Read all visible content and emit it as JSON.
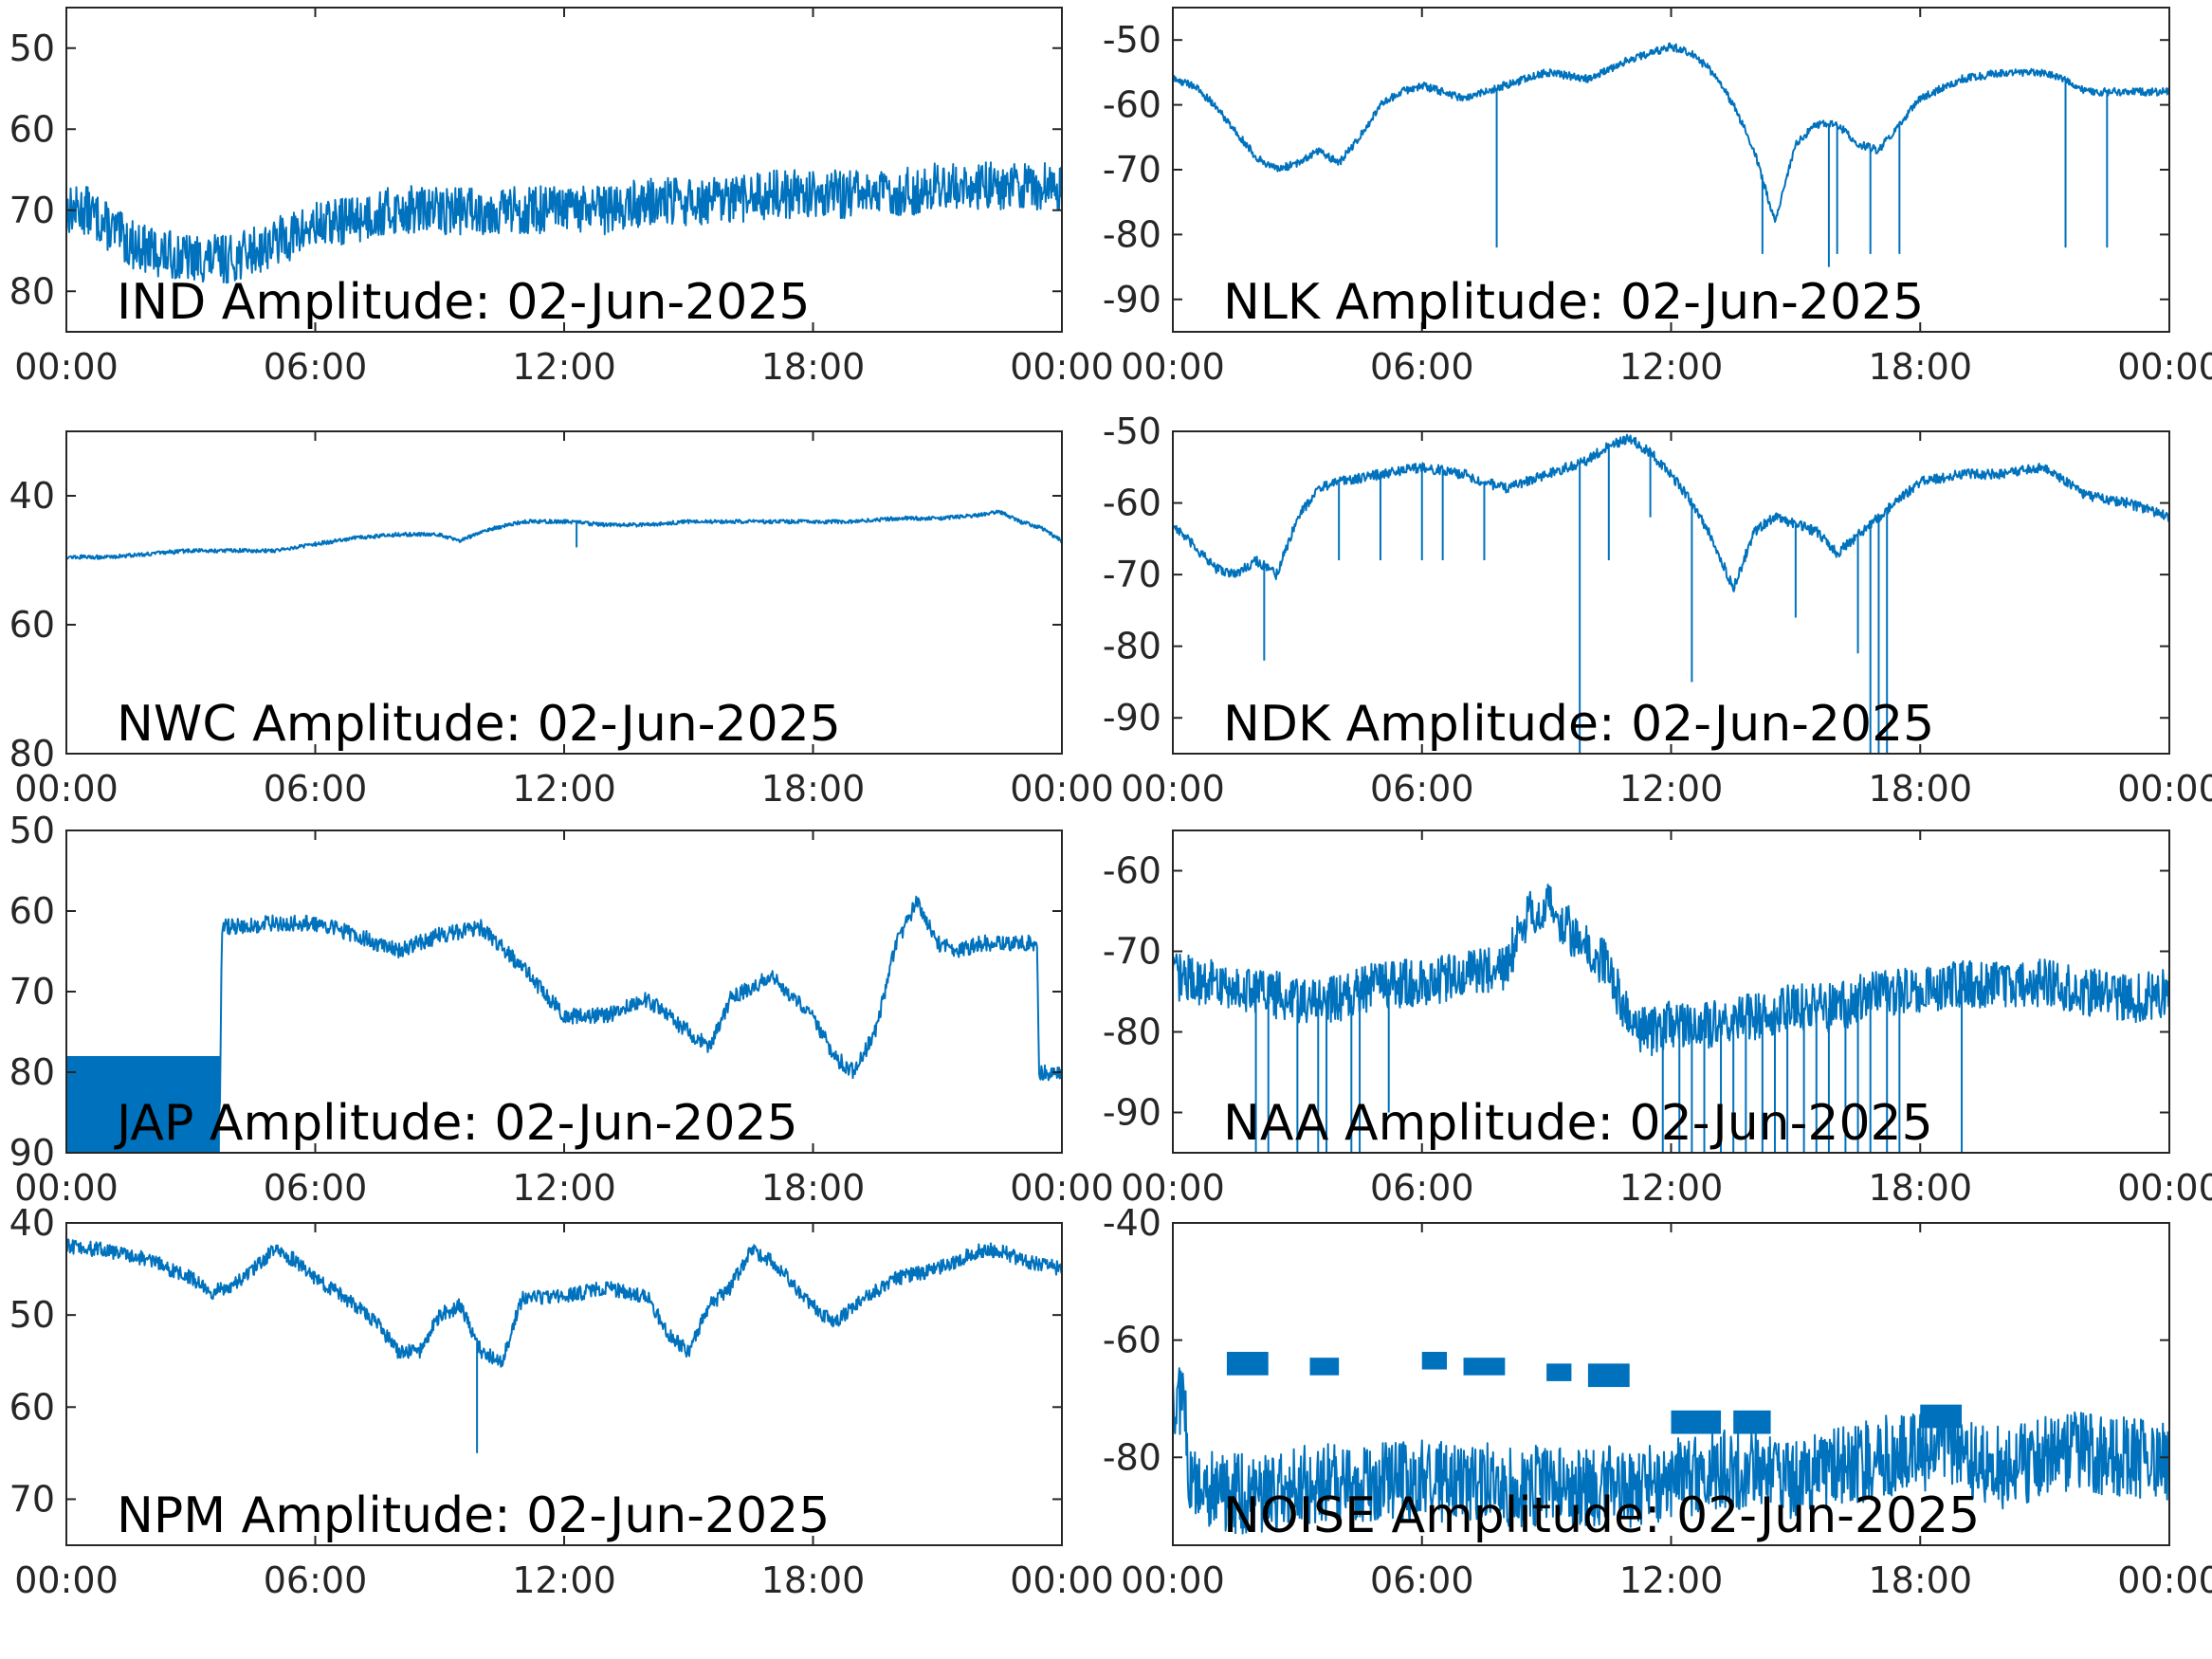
{
  "chart_data": [
    {
      "type": "line",
      "title": "IND Amplitude: 02-Jun-2025",
      "x_ticks": [
        "00:00",
        "06:00",
        "12:00",
        "18:00",
        "00:00"
      ],
      "x_range_hours": [
        0,
        24
      ],
      "y_ticks": [
        "50",
        "60",
        "70",
        "80"
      ],
      "y_tick_values": [
        -50,
        -60,
        -70,
        -80
      ],
      "ylim": [
        -85,
        -45
      ],
      "noise": 3,
      "series": [
        {
          "x": [
            0,
            0.5,
            1,
            1.5,
            2,
            3,
            4,
            5,
            6,
            7,
            8,
            9,
            10,
            11,
            12,
            13,
            14,
            15,
            16,
            17,
            18,
            19,
            20,
            21,
            22,
            23,
            24
          ],
          "y": [
            -70,
            -70,
            -72,
            -74,
            -75,
            -76,
            -76,
            -74,
            -72,
            -71,
            -70,
            -70,
            -70,
            -70,
            -70,
            -70,
            -69,
            -69,
            -69,
            -68,
            -68,
            -68,
            -68,
            -67,
            -67,
            -67,
            -67
          ]
        }
      ]
    },
    {
      "type": "line",
      "title": "NLK Amplitude: 02-Jun-2025",
      "x_ticks": [
        "00:00",
        "06:00",
        "12:00",
        "18:00",
        "00:00"
      ],
      "x_range_hours": [
        0,
        24
      ],
      "y_ticks": [
        "-50",
        "-60",
        "-70",
        "-80",
        "-90"
      ],
      "y_tick_values": [
        -50,
        -60,
        -70,
        -80,
        -90
      ],
      "ylim": [
        -95,
        -45
      ],
      "noise": 0.6,
      "series": [
        {
          "x": [
            0,
            0.5,
            1,
            1.5,
            2,
            2.5,
            3,
            3.5,
            4,
            4.5,
            5,
            5.5,
            6,
            7,
            8,
            9,
            10,
            11,
            11.5,
            12,
            12.5,
            13,
            13.5,
            14,
            14.5,
            15,
            15.5,
            16,
            16.5,
            17,
            18,
            19,
            20,
            21,
            21.5,
            22,
            23,
            24
          ],
          "y": [
            -56,
            -57,
            -60,
            -64,
            -68,
            -70,
            -69,
            -67,
            -69,
            -65,
            -60,
            -58,
            -57,
            -59,
            -57,
            -55,
            -56,
            -53,
            -52,
            -51,
            -52,
            -55,
            -60,
            -67,
            -78,
            -66,
            -63,
            -63,
            -66,
            -67,
            -59,
            -56,
            -55,
            -55,
            -56,
            -58,
            -58,
            -58
          ]
        }
      ],
      "spikes": [
        [
          7.8,
          -82
        ],
        [
          14.2,
          -83
        ],
        [
          15.8,
          -85
        ],
        [
          16,
          -83
        ],
        [
          16.8,
          -83
        ],
        [
          17.5,
          -83
        ],
        [
          21.5,
          -82
        ],
        [
          22.5,
          -82
        ]
      ]
    },
    {
      "type": "line",
      "title": "NWC Amplitude: 02-Jun-2025",
      "x_ticks": [
        "00:00",
        "06:00",
        "12:00",
        "18:00",
        "00:00"
      ],
      "x_range_hours": [
        0,
        24
      ],
      "y_ticks": [
        "40",
        "60",
        "80"
      ],
      "y_tick_values": [
        -40,
        -60,
        -80
      ],
      "ylim": [
        -80,
        -30
      ],
      "noise": 0.3,
      "series": [
        {
          "x": [
            0,
            1,
            2,
            3,
            4,
            5,
            6,
            7,
            8,
            9,
            9.5,
            10,
            11,
            12,
            13,
            14,
            15,
            16,
            17,
            18,
            19,
            20,
            21,
            22,
            22.5,
            23,
            23.5,
            24
          ],
          "y": [
            -49.5,
            -49.5,
            -49,
            -48.5,
            -48.5,
            -48.5,
            -47.5,
            -46.5,
            -46,
            -46,
            -47,
            -45.5,
            -44,
            -44,
            -44.5,
            -44.5,
            -44,
            -44,
            -44,
            -44,
            -44,
            -43.5,
            -43.5,
            -43,
            -42.5,
            -44,
            -45,
            -47
          ]
        }
      ],
      "spikes": [
        [
          12.3,
          -48
        ]
      ]
    },
    {
      "type": "line",
      "title": "NDK Amplitude: 02-Jun-2025",
      "x_ticks": [
        "00:00",
        "06:00",
        "12:00",
        "18:00",
        "00:00"
      ],
      "x_range_hours": [
        0,
        24
      ],
      "y_ticks": [
        "-50",
        "-60",
        "-70",
        "-80",
        "-90"
      ],
      "y_tick_values": [
        -50,
        -60,
        -70,
        -80,
        -90
      ],
      "ylim": [
        -95,
        -50
      ],
      "noise": 0.7,
      "series": [
        {
          "x": [
            0,
            0.5,
            1,
            1.5,
            2,
            2.5,
            3,
            3.5,
            4,
            5,
            6,
            7,
            7.5,
            8,
            9,
            10,
            10.5,
            11,
            11.5,
            12,
            12.5,
            13,
            13.5,
            14,
            14.5,
            15,
            15.5,
            16,
            17,
            18,
            19,
            20,
            21,
            21.5,
            22,
            23,
            24
          ],
          "y": [
            -63,
            -66,
            -69,
            -70,
            -68,
            -70,
            -62,
            -58,
            -57,
            -56,
            -55,
            -56,
            -57,
            -58,
            -56,
            -54,
            -52,
            -51,
            -53,
            -56,
            -60,
            -65,
            -72,
            -64,
            -62,
            -63,
            -64,
            -67,
            -62,
            -57,
            -56,
            -56,
            -55,
            -57,
            -59,
            -60,
            -62
          ]
        }
      ],
      "spikes": [
        [
          2.2,
          -82
        ],
        [
          4,
          -68
        ],
        [
          5,
          -68
        ],
        [
          6,
          -68
        ],
        [
          6.5,
          -68
        ],
        [
          7.5,
          -68
        ],
        [
          9.8,
          -95
        ],
        [
          10.5,
          -68
        ],
        [
          11.5,
          -62
        ],
        [
          12.5,
          -85
        ],
        [
          15,
          -76
        ],
        [
          16.5,
          -81
        ],
        [
          16.8,
          -95
        ],
        [
          17,
          -95
        ],
        [
          17.2,
          -95
        ]
      ]
    },
    {
      "type": "line",
      "title": "JAP Amplitude: 02-Jun-2025",
      "x_ticks": [
        "00:00",
        "06:00",
        "12:00",
        "18:00",
        "00:00"
      ],
      "x_range_hours": [
        0,
        24
      ],
      "y_ticks": [
        "50",
        "60",
        "70",
        "80",
        "90"
      ],
      "y_tick_values": [
        -50,
        -60,
        -70,
        -80,
        -90
      ],
      "ylim": [
        -90,
        -50
      ],
      "noise": 1,
      "series": [
        {
          "x": [
            0,
            1,
            2,
            3,
            3.7,
            3.75,
            4,
            5,
            6,
            7,
            8,
            9,
            10,
            11,
            11.5,
            12,
            13,
            14,
            15,
            15.5,
            16,
            17,
            18,
            18.5,
            19,
            19.5,
            20,
            20.5,
            21,
            21.5,
            22,
            23,
            23.4,
            23.45,
            24
          ],
          "y": [
            -84,
            -84,
            -84,
            -84,
            -84,
            -62,
            -62,
            -61.5,
            -61.5,
            -63,
            -65,
            -63,
            -62,
            -67,
            -70,
            -73,
            -73,
            -71,
            -75,
            -77,
            -71,
            -68,
            -73,
            -78,
            -80,
            -75,
            -64,
            -59,
            -64,
            -65,
            -64,
            -64,
            -64,
            -80,
            -80
          ]
        }
      ],
      "bands": [
        [
          0,
          3.7,
          -90,
          -78
        ]
      ]
    },
    {
      "type": "line",
      "title": "NAA Amplitude: 02-Jun-2025",
      "x_ticks": [
        "00:00",
        "06:00",
        "12:00",
        "18:00",
        "00:00"
      ],
      "x_range_hours": [
        0,
        24
      ],
      "y_ticks": [
        "-60",
        "-70",
        "-80",
        "-90"
      ],
      "y_tick_values": [
        -60,
        -70,
        -80,
        -90
      ],
      "ylim": [
        -95,
        -55
      ],
      "noise": 3,
      "series": [
        {
          "x": [
            0,
            1,
            2,
            3,
            4,
            5,
            6,
            7,
            8,
            8.5,
            9,
            9.5,
            10,
            10.5,
            11,
            11.5,
            12,
            13,
            14,
            15,
            16,
            17,
            18,
            19,
            20,
            21,
            22,
            23,
            24
          ],
          "y": [
            -73,
            -74,
            -75,
            -76,
            -76,
            -74,
            -74,
            -73,
            -72,
            -66,
            -64,
            -67,
            -70,
            -72,
            -79,
            -80,
            -79,
            -79,
            -78,
            -77,
            -77,
            -75,
            -75,
            -74,
            -74,
            -74,
            -75,
            -76,
            -75
          ]
        }
      ],
      "spikes": [
        [
          2,
          -95
        ],
        [
          2.3,
          -95
        ],
        [
          3,
          -95
        ],
        [
          3.5,
          -95
        ],
        [
          3.7,
          -95
        ],
        [
          4.3,
          -95
        ],
        [
          4.5,
          -95
        ],
        [
          5.2,
          -90
        ],
        [
          11.8,
          -95
        ],
        [
          12.2,
          -95
        ],
        [
          12.5,
          -95
        ],
        [
          12.8,
          -95
        ],
        [
          13.2,
          -95
        ],
        [
          13.5,
          -95
        ],
        [
          13.8,
          -95
        ],
        [
          14.2,
          -95
        ],
        [
          14.5,
          -95
        ],
        [
          14.8,
          -95
        ],
        [
          15.2,
          -95
        ],
        [
          15.5,
          -95
        ],
        [
          15.8,
          -95
        ],
        [
          16.2,
          -95
        ],
        [
          16.5,
          -95
        ],
        [
          16.8,
          -95
        ],
        [
          17.2,
          -95
        ],
        [
          17.5,
          -95
        ],
        [
          19,
          -95
        ]
      ]
    },
    {
      "type": "line",
      "title": "NPM Amplitude: 02-Jun-2025",
      "x_ticks": [
        "00:00",
        "06:00",
        "12:00",
        "18:00",
        "00:00"
      ],
      "x_range_hours": [
        0,
        24
      ],
      "y_ticks": [
        "40",
        "50",
        "60",
        "70"
      ],
      "y_tick_values": [
        -40,
        -50,
        -60,
        -70
      ],
      "ylim": [
        -75,
        -40
      ],
      "noise": 0.8,
      "series": [
        {
          "x": [
            0,
            1,
            2,
            3,
            3.5,
            4,
            4.5,
            5,
            5.5,
            6,
            7,
            7.5,
            8,
            8.5,
            9,
            9.5,
            10,
            10.5,
            11,
            12,
            13,
            14,
            14.5,
            15,
            15.5,
            16,
            16.5,
            17,
            18,
            18.5,
            19,
            20,
            21,
            21.5,
            22,
            22.5,
            23,
            24
          ],
          "y": [
            -42.5,
            -43,
            -44,
            -46,
            -47.5,
            -47,
            -45,
            -43,
            -44,
            -46,
            -49,
            -51,
            -54,
            -54,
            -50,
            -49,
            -54,
            -55,
            -48,
            -48,
            -47,
            -48,
            -52,
            -54,
            -49,
            -47,
            -43,
            -44,
            -49,
            -51,
            -49,
            -46,
            -45,
            -44,
            -43,
            -43,
            -44,
            -45
          ]
        }
      ],
      "spikes": [
        [
          9.9,
          -65
        ]
      ]
    },
    {
      "type": "line",
      "title": "NOISE Amplitude: 02-Jun-2025",
      "x_ticks": [
        "00:00",
        "06:00",
        "12:00",
        "18:00",
        "00:00"
      ],
      "x_range_hours": [
        0,
        24
      ],
      "y_ticks": [
        "-40",
        "-60",
        "-80"
      ],
      "y_tick_values": [
        -40,
        -60,
        -80
      ],
      "ylim": [
        -95,
        -40
      ],
      "noise": 7,
      "series": [
        {
          "x": [
            0,
            0.3,
            0.4,
            1,
            2,
            3,
            4,
            5,
            6,
            7,
            8,
            9,
            10,
            11,
            12,
            13,
            14,
            15,
            16,
            17,
            18,
            19,
            19.2,
            20,
            21,
            22,
            23,
            24
          ],
          "y": [
            -70,
            -70,
            -85,
            -86,
            -86,
            -85,
            -84,
            -84,
            -84,
            -84,
            -85,
            -85,
            -85,
            -85,
            -84,
            -82,
            -82,
            -84,
            -82,
            -80,
            -79,
            -78,
            -80,
            -82,
            -80,
            -79,
            -80,
            -81
          ]
        }
      ],
      "bands": [
        [
          1.3,
          2.3,
          -66,
          -62
        ],
        [
          3.3,
          4,
          -66,
          -63
        ],
        [
          6,
          6.6,
          -65,
          -62
        ],
        [
          7,
          8,
          -66,
          -63
        ],
        [
          9,
          9.6,
          -67,
          -64
        ],
        [
          10,
          11,
          -68,
          -64
        ],
        [
          12,
          13.2,
          -76,
          -72
        ],
        [
          13.5,
          14.4,
          -76,
          -72
        ],
        [
          18,
          19,
          -75,
          -71
        ]
      ]
    }
  ],
  "colors": {
    "line": "#0072BD",
    "axis": "#262626"
  }
}
